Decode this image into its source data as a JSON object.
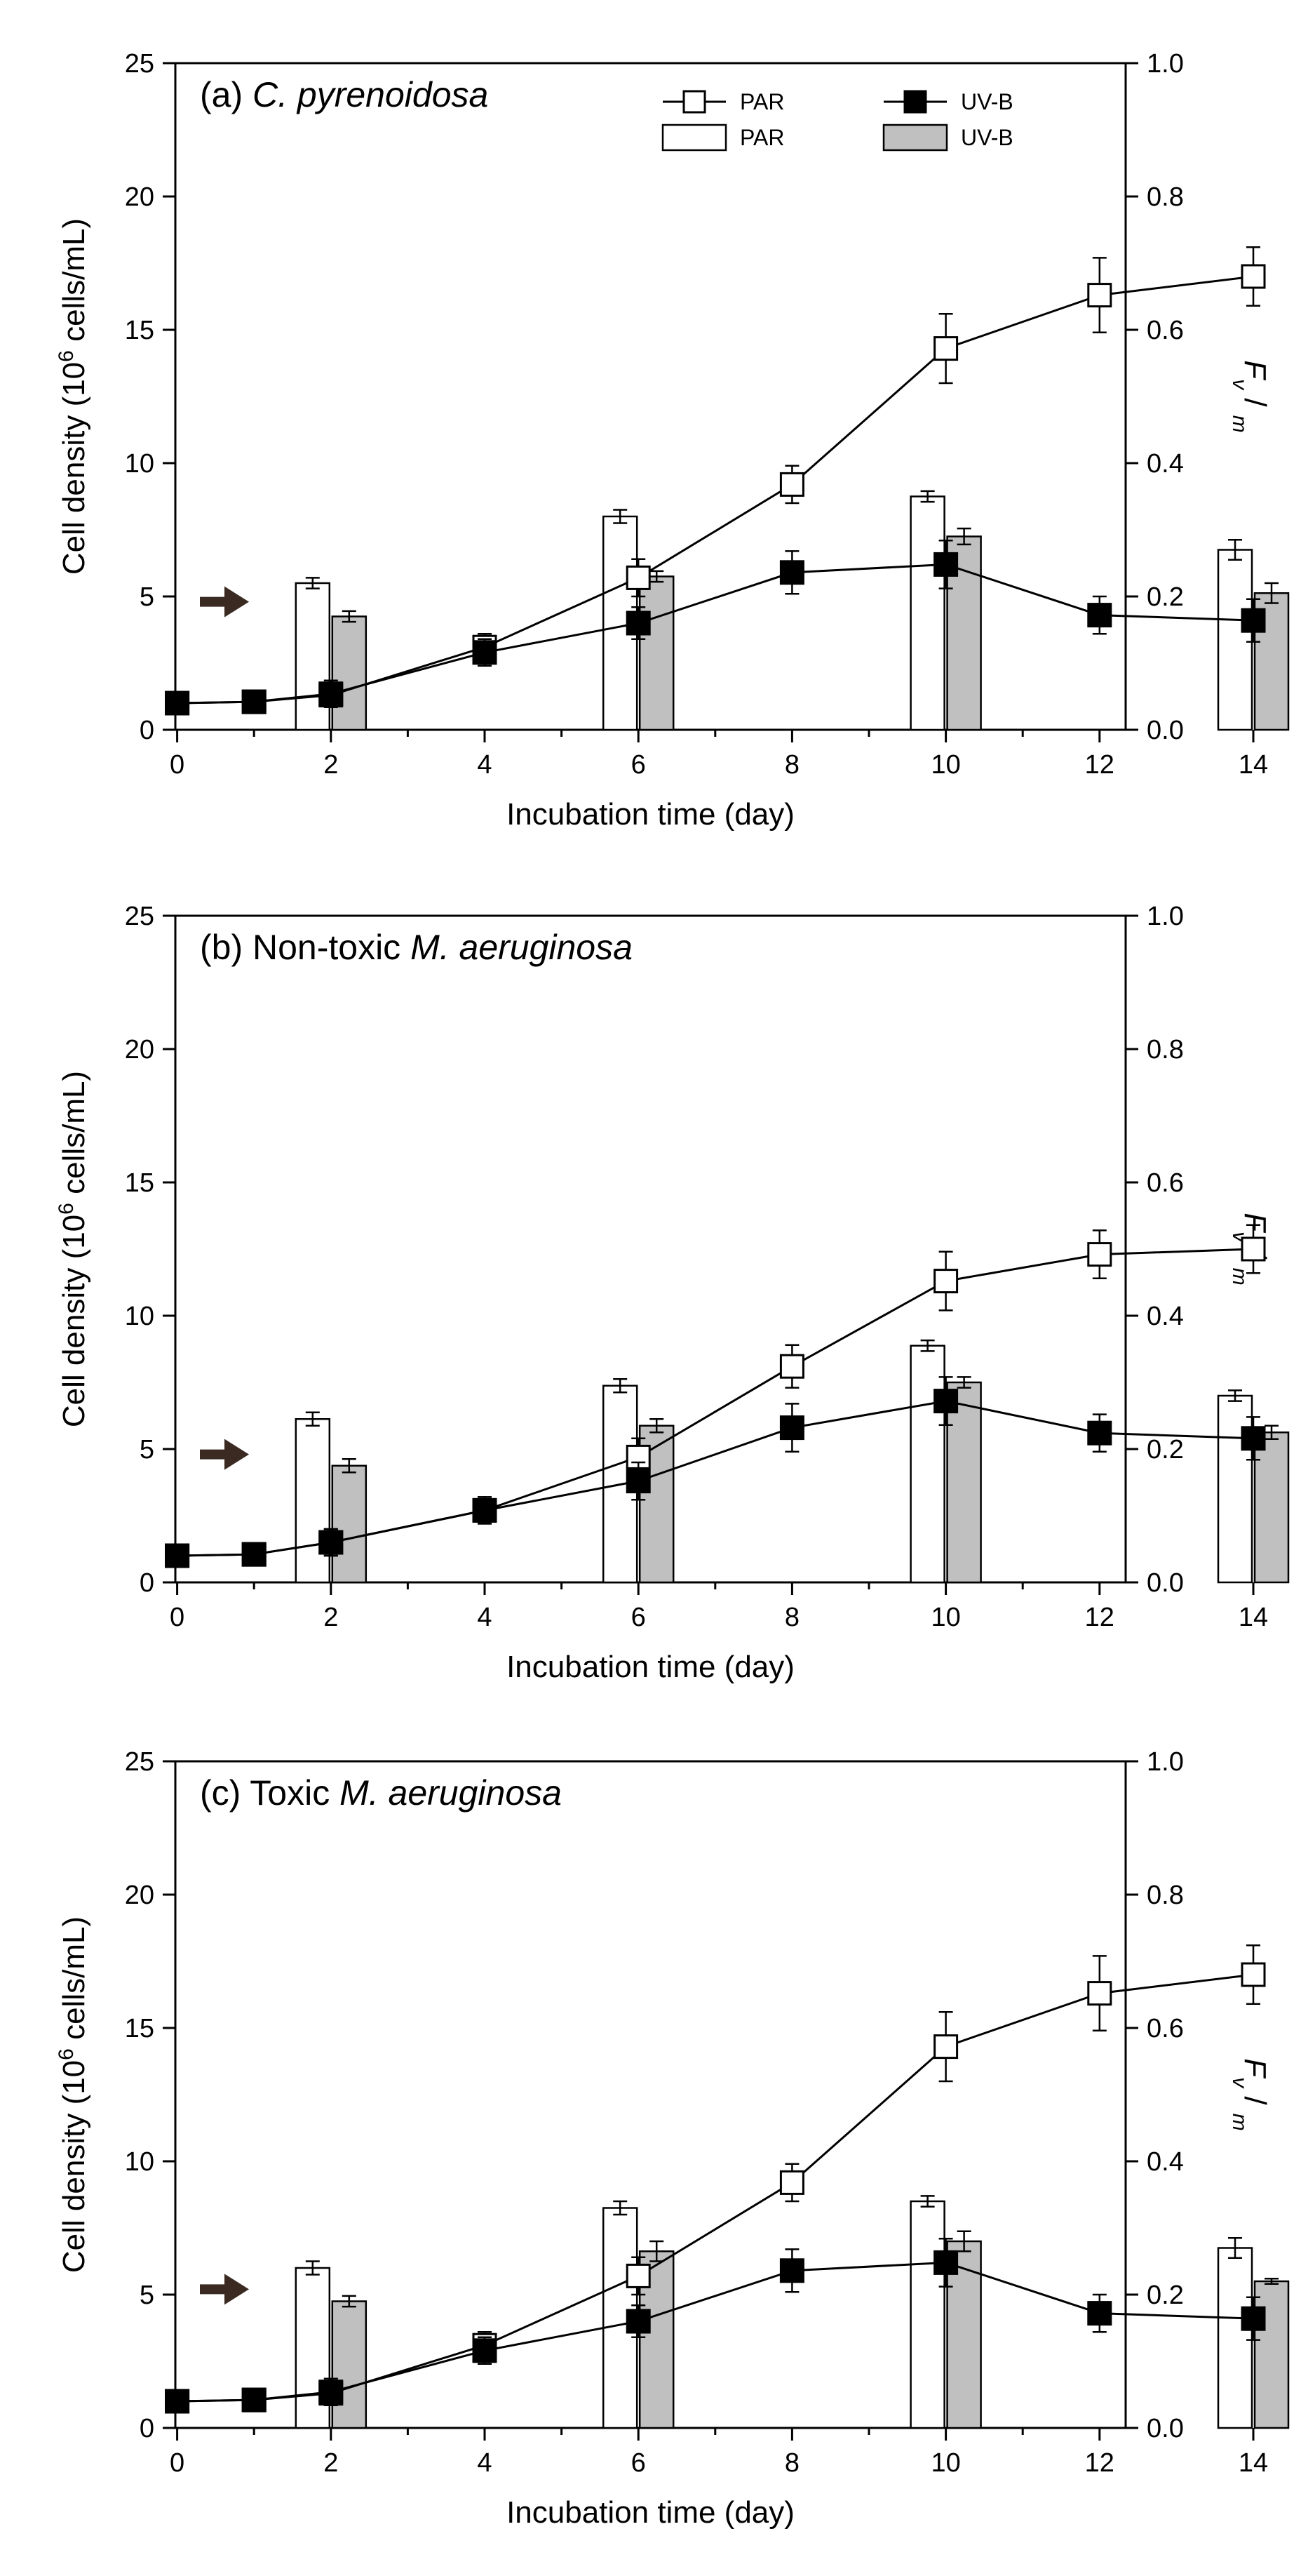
{
  "chart_data": [
    {
      "type": "bar",
      "title_prefix": "(a) ",
      "title_italic": "C. pyrenoidosa",
      "title_suffix": "",
      "xlabel": "Incubation time (day)",
      "ylabel_left": "Cell density (10",
      "ylabel_left_sup": "6",
      "ylabel_left_end": " cells/mL)",
      "ylabel_right_f": "F",
      "ylabel_right_v": "v",
      "ylabel_right_slash": " / ",
      "ylabel_right_m": "m",
      "x_ticks": [
        "0",
        "2",
        "4",
        "6",
        "8",
        "10",
        "12",
        "14"
      ],
      "x_tick_values": [
        0,
        2,
        4,
        6,
        8,
        10,
        12,
        14
      ],
      "ylim_left": [
        0,
        25
      ],
      "y_left_ticks": [
        "0",
        "5",
        "10",
        "15",
        "20",
        "25"
      ],
      "y_left_tick_values": [
        0,
        5,
        10,
        15,
        20,
        25
      ],
      "ylim_right": [
        0,
        1.0
      ],
      "y_right_ticks": [
        "0.0",
        "0.2",
        "0.4",
        "0.6",
        "0.8",
        "1.0"
      ],
      "y_right_tick_values": [
        0,
        0.2,
        0.4,
        0.6,
        0.8,
        1.0
      ],
      "legend": {
        "line_par": "PAR",
        "line_uvb": "UV-B",
        "bar_par": "PAR",
        "bar_uvb": "UV-B"
      },
      "arrow_marker_value": 4.8,
      "line_series": [
        {
          "name": "PAR",
          "x": [
            0,
            1,
            2,
            4,
            6,
            8,
            10,
            12,
            14
          ],
          "values": [
            1.0,
            1.05,
            1.3,
            3.1,
            5.7,
            9.2,
            14.3,
            16.3,
            17.0
          ],
          "errors": [
            0.15,
            0.15,
            0.4,
            0.5,
            0.7,
            0.7,
            1.3,
            1.4,
            1.1
          ]
        },
        {
          "name": "UV-B",
          "x": [
            0,
            1,
            2,
            4,
            6,
            8,
            10,
            12,
            14
          ],
          "values": [
            1.0,
            1.05,
            1.35,
            2.9,
            4.0,
            5.9,
            6.2,
            4.3,
            4.1
          ],
          "errors": [
            0.15,
            0.15,
            0.5,
            0.5,
            0.6,
            0.8,
            0.9,
            0.7,
            0.8
          ]
        }
      ],
      "bar_series": [
        {
          "name": "PAR",
          "x": [
            2,
            6,
            10,
            14
          ],
          "values": [
            0.22,
            0.32,
            0.35,
            0.27
          ],
          "errors": [
            0.008,
            0.01,
            0.008,
            0.015
          ]
        },
        {
          "name": "UV-B",
          "x": [
            2,
            6,
            10,
            14
          ],
          "values": [
            0.17,
            0.23,
            0.29,
            0.205
          ],
          "errors": [
            0.008,
            0.008,
            0.012,
            0.015
          ]
        }
      ]
    },
    {
      "type": "bar",
      "title_prefix": "(b) Non-toxic ",
      "title_italic": "M. aeruginosa",
      "title_suffix": "",
      "xlabel": "Incubation time (day)",
      "ylabel_left": "Cell density (10",
      "ylabel_left_sup": "6",
      "ylabel_left_end": " cells/mL)",
      "ylabel_right_f": "F",
      "ylabel_right_v": "v",
      "ylabel_right_slash": " / ",
      "ylabel_right_m": "m",
      "x_ticks": [
        "0",
        "2",
        "4",
        "6",
        "8",
        "10",
        "12",
        "14"
      ],
      "x_tick_values": [
        0,
        2,
        4,
        6,
        8,
        10,
        12,
        14
      ],
      "ylim_left": [
        0,
        25
      ],
      "y_left_ticks": [
        "0",
        "5",
        "10",
        "15",
        "20",
        "25"
      ],
      "y_left_tick_values": [
        0,
        5,
        10,
        15,
        20,
        25
      ],
      "ylim_right": [
        0,
        1.0
      ],
      "y_right_ticks": [
        "0.0",
        "0.2",
        "0.4",
        "0.6",
        "0.8",
        "1.0"
      ],
      "y_right_tick_values": [
        0,
        0.2,
        0.4,
        0.6,
        0.8,
        1.0
      ],
      "legend": null,
      "arrow_marker_value": 4.8,
      "line_series": [
        {
          "name": "PAR",
          "x": [
            0,
            1,
            2,
            4,
            6,
            8,
            10,
            12,
            14
          ],
          "values": [
            1.0,
            1.05,
            1.5,
            2.7,
            4.7,
            8.1,
            11.3,
            12.3,
            12.5
          ],
          "errors": [
            0.15,
            0.15,
            0.5,
            0.5,
            0.7,
            0.8,
            1.1,
            0.9,
            0.9
          ]
        },
        {
          "name": "UV-B",
          "x": [
            0,
            1,
            2,
            4,
            6,
            8,
            10,
            12,
            14
          ],
          "values": [
            1.0,
            1.05,
            1.5,
            2.7,
            3.8,
            5.8,
            6.8,
            5.6,
            5.4
          ],
          "errors": [
            0.15,
            0.15,
            0.5,
            0.5,
            0.7,
            0.9,
            0.9,
            0.7,
            0.8
          ]
        }
      ],
      "bar_series": [
        {
          "name": "PAR",
          "x": [
            2,
            6,
            10,
            14
          ],
          "values": [
            0.245,
            0.295,
            0.355,
            0.28
          ],
          "errors": [
            0.01,
            0.01,
            0.008,
            0.008
          ]
        },
        {
          "name": "UV-B",
          "x": [
            2,
            6,
            10,
            14
          ],
          "values": [
            0.175,
            0.235,
            0.3,
            0.225
          ],
          "errors": [
            0.01,
            0.01,
            0.008,
            0.01
          ]
        }
      ]
    },
    {
      "type": "bar",
      "title_prefix": "(c) Toxic ",
      "title_italic": "M. aeruginosa",
      "title_suffix": "",
      "xlabel": "Incubation time (day)",
      "ylabel_left": "Cell density (10",
      "ylabel_left_sup": "6",
      "ylabel_left_end": " cells/mL)",
      "ylabel_right_f": "F",
      "ylabel_right_v": "v",
      "ylabel_right_slash": " / ",
      "ylabel_right_m": "m",
      "x_ticks": [
        "0",
        "2",
        "4",
        "6",
        "8",
        "10",
        "12",
        "14"
      ],
      "x_tick_values": [
        0,
        2,
        4,
        6,
        8,
        10,
        12,
        14
      ],
      "ylim_left": [
        0,
        25
      ],
      "y_left_ticks": [
        "0",
        "5",
        "10",
        "15",
        "20",
        "25"
      ],
      "y_left_tick_values": [
        0,
        5,
        10,
        15,
        20,
        25
      ],
      "ylim_right": [
        0,
        1.0
      ],
      "y_right_ticks": [
        "0.0",
        "0.2",
        "0.4",
        "0.6",
        "0.8",
        "1.0"
      ],
      "y_right_tick_values": [
        0,
        0.2,
        0.4,
        0.6,
        0.8,
        1.0
      ],
      "legend": null,
      "arrow_marker_value": 5.2,
      "line_series": [
        {
          "name": "PAR",
          "x": [
            0,
            1,
            2,
            4,
            6,
            8,
            10,
            12,
            14
          ],
          "values": [
            1.0,
            1.05,
            1.3,
            3.1,
            5.7,
            9.2,
            14.3,
            16.3,
            17.0
          ],
          "errors": [
            0.15,
            0.15,
            0.4,
            0.5,
            0.7,
            0.7,
            1.3,
            1.4,
            1.1
          ]
        },
        {
          "name": "UV-B",
          "x": [
            0,
            1,
            2,
            4,
            6,
            8,
            10,
            12,
            14
          ],
          "values": [
            1.0,
            1.05,
            1.35,
            2.9,
            4.0,
            5.9,
            6.2,
            4.3,
            4.1
          ],
          "errors": [
            0.15,
            0.15,
            0.5,
            0.5,
            0.6,
            0.8,
            0.9,
            0.7,
            0.8
          ]
        }
      ],
      "bar_series": [
        {
          "name": "PAR",
          "x": [
            2,
            6,
            10,
            14
          ],
          "values": [
            0.24,
            0.33,
            0.34,
            0.27
          ],
          "errors": [
            0.01,
            0.01,
            0.008,
            0.015
          ]
        },
        {
          "name": "UV-B",
          "x": [
            2,
            6,
            10,
            14
          ],
          "values": [
            0.19,
            0.265,
            0.28,
            0.22
          ],
          "errors": [
            0.008,
            0.015,
            0.015,
            0.004
          ]
        }
      ]
    }
  ]
}
